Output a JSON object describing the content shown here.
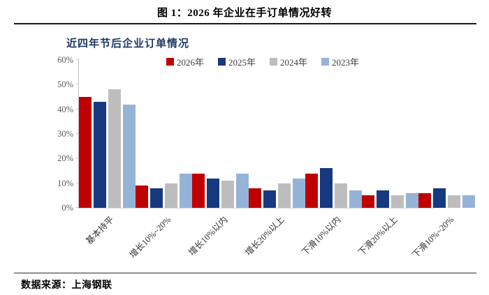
{
  "header": {
    "title": "图 1：2026 年企业在手订单情况好转"
  },
  "footer": {
    "text": "数据来源：上海钢联"
  },
  "chart_data": {
    "type": "bar",
    "title": "近四年节后企业订单情况",
    "categories": [
      "基本持平",
      "增长10%~20%",
      "增长10%以内",
      "增长20%以上",
      "下滑10%以内",
      "下滑20%以上",
      "下滑10%~20%"
    ],
    "series": [
      {
        "name": "2026年",
        "color": "#C00000",
        "values": [
          45,
          9,
          14,
          8,
          14,
          5,
          6
        ]
      },
      {
        "name": "2025年",
        "color": "#16397F",
        "values": [
          43,
          8,
          12,
          7,
          16,
          7,
          8
        ]
      },
      {
        "name": "2024年",
        "color": "#BDBDBD",
        "values": [
          48,
          10,
          11,
          10,
          10,
          5,
          5
        ]
      },
      {
        "name": "2023年",
        "color": "#95B3D7",
        "values": [
          42,
          14,
          14,
          12,
          7,
          6,
          5
        ]
      }
    ],
    "ylim": [
      0,
      60
    ],
    "y_ticks": [
      "0%",
      "10%",
      "20%",
      "30%",
      "40%",
      "50%",
      "60%"
    ],
    "grid": false,
    "legend_position": "top",
    "accent_title_color": "#1F3864"
  }
}
